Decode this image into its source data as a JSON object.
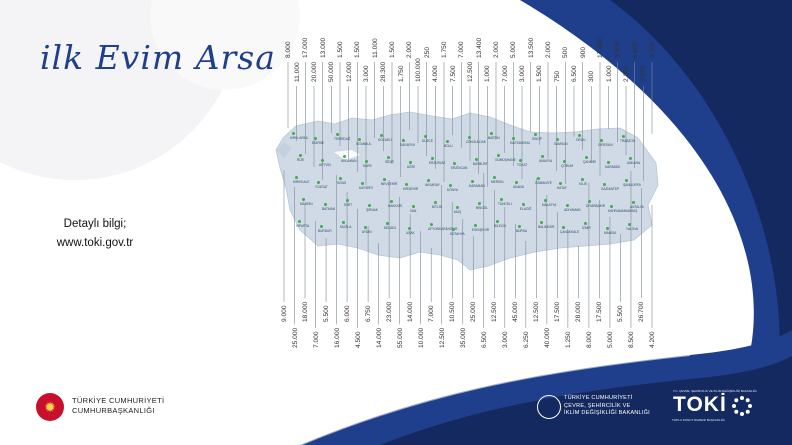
{
  "title": "ilk Evim Arsa",
  "info": {
    "line1": "Detaylı bilgi;",
    "line2": "www.toki.gov.tr"
  },
  "footer": {
    "presidency_line1": "TÜRKİYE CUMHURİYETİ",
    "presidency_line2": "CUMHURBAŞKANLIĞI",
    "ministry_line1": "TÜRKİYE CUMHURİYETİ",
    "ministry_line2": "ÇEVRE, ŞEHİRCİLİK VE",
    "ministry_line3": "İKLİM DEĞİŞİKLİĞİ BAKANLIĞI",
    "toki_top": "T.C. ÇEVRE, ŞEHİRCİLİK VE İKLİM DEĞİŞİKLİĞİ BAKANLIĞI",
    "toki_logo": "TOKİ",
    "toki_sub": "TOPLU KONUT İDARESİ BAŞKANLIĞI"
  },
  "colors": {
    "navy": "#1f3f8c",
    "dark_navy": "#14295f",
    "map": "#cfdae6",
    "pin": "#3fae49"
  },
  "top_numbers": [
    "8.000",
    "11.000",
    "17.000",
    "20.000",
    "13.000",
    "50.000",
    "1.500",
    "12.000",
    "1.500",
    "3.000",
    "11.000",
    "28.300",
    "1.500",
    "1.750",
    "2.000",
    "100.000",
    "250",
    "4.000",
    "1.750",
    "7.500",
    "7.000",
    "12.500",
    "13.400",
    "1.000",
    "2.000",
    "7.000",
    "5.000",
    "3.000",
    "13.500",
    "1.500",
    "2.000",
    "750",
    "500",
    "6.500",
    "900",
    "300",
    "17.500",
    "1.000",
    "5.500",
    "2.200",
    "6.000",
    "5.050",
    "3.500"
  ],
  "bottom_numbers": [
    "9.000",
    "25.000",
    "18.000",
    "7.000",
    "5.500",
    "16.000",
    "6.000",
    "4.500",
    "6.750",
    "14.000",
    "23.000",
    "55.000",
    "14.000",
    "10.000",
    "7.000",
    "12.500",
    "10.500",
    "35.000",
    "25.000",
    "6.500",
    "12.500",
    "3.000",
    "45.000",
    "6.250",
    "12.500",
    "40.000",
    "17.500",
    "1.250",
    "28.000",
    "8.000",
    "17.500",
    "5.000",
    "5.500",
    "8.500",
    "26.700",
    "4.200"
  ],
  "cities": [
    "KIRKLARELİ",
    "EDİRNE",
    "TEKİRDAĞ",
    "İSTANBUL",
    "KOCAELİ",
    "SAKARYA",
    "DÜZCE",
    "BOLU",
    "ZONGULDAK",
    "BARTIN",
    "KASTAMONU",
    "SİNOP",
    "SAMSUN",
    "ORDU",
    "GİRESUN",
    "TRABZON",
    "RİZE",
    "ARTVİN",
    "ARDAHAN",
    "KARS",
    "IĞDIR",
    "AĞRI",
    "ERZURUM",
    "ERZİNCAN",
    "BAYBURT",
    "GÜMÜŞHANE",
    "TOKAT",
    "AMASYA",
    "ÇORUM",
    "ÇANKIRI",
    "KARABÜK",
    "ANKARA",
    "KIRIKKALE",
    "YOZGAT",
    "SİVAS",
    "KAYSERİ",
    "NEVŞEHİR",
    "KIRŞEHİR",
    "AKSARAY",
    "KONYA",
    "KARAMAN",
    "MERSİN",
    "ADANA",
    "OSMANİYE",
    "HATAY",
    "KİLİS",
    "GAZİANTEP",
    "ŞANLIURFA",
    "MARDİN",
    "BATMAN",
    "SİİRT",
    "ŞIRNAK",
    "HAKKARİ",
    "VAN",
    "BİTLİS",
    "MUŞ",
    "BİNGÖL",
    "TUNCELİ",
    "ELAZIĞ",
    "MALATYA",
    "ADIYAMAN",
    "DİYARBAKIR",
    "KAHRAMANMARAŞ",
    "ANTALYA",
    "ISPARTA",
    "BURDUR",
    "MUĞLA",
    "AYDIN",
    "DENİZLİ",
    "UŞAK",
    "AFYONKARAHİSAR",
    "KÜTAHYA",
    "ESKİŞEHİR",
    "BİLECİK",
    "BURSA",
    "BALIKESİR",
    "ÇANAKKALE",
    "İZMİR",
    "MANİSA",
    "YALOVA"
  ]
}
